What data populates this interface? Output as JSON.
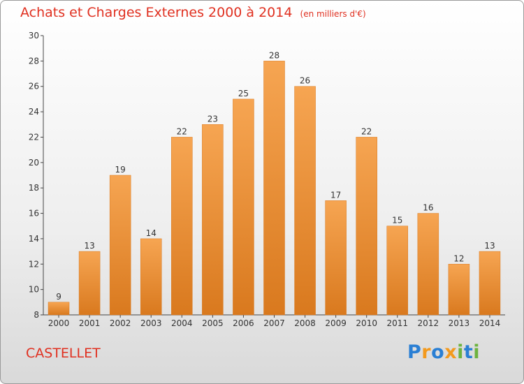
{
  "title": "Achats et Charges Externes 2000 à 2014",
  "unit": "(en milliers d'€)",
  "commune": "CASTELLET",
  "logo": {
    "letters": [
      "P",
      "r",
      "o",
      "x",
      "i",
      "t",
      "i"
    ],
    "colors": [
      "#2a7fd4",
      "#f39a1e",
      "#2a7fd4",
      "#f39a1e",
      "#6db33f",
      "#2a7fd4",
      "#6db33f"
    ]
  },
  "colors": {
    "bar_light": "#f6a552",
    "bar_dark": "#d9791e",
    "title": "#e03020"
  },
  "chart_data": {
    "type": "bar",
    "categories": [
      "2000",
      "2001",
      "2002",
      "2003",
      "2004",
      "2005",
      "2006",
      "2007",
      "2008",
      "2009",
      "2010",
      "2011",
      "2012",
      "2013",
      "2014"
    ],
    "values": [
      9,
      13,
      19,
      14,
      22,
      23,
      25,
      28,
      26,
      17,
      22,
      15,
      16,
      12,
      13
    ],
    "ylim": [
      8,
      30
    ],
    "yticks": [
      8,
      10,
      12,
      14,
      16,
      18,
      20,
      22,
      24,
      26,
      28,
      30
    ],
    "grid": false,
    "data_labels": true
  }
}
